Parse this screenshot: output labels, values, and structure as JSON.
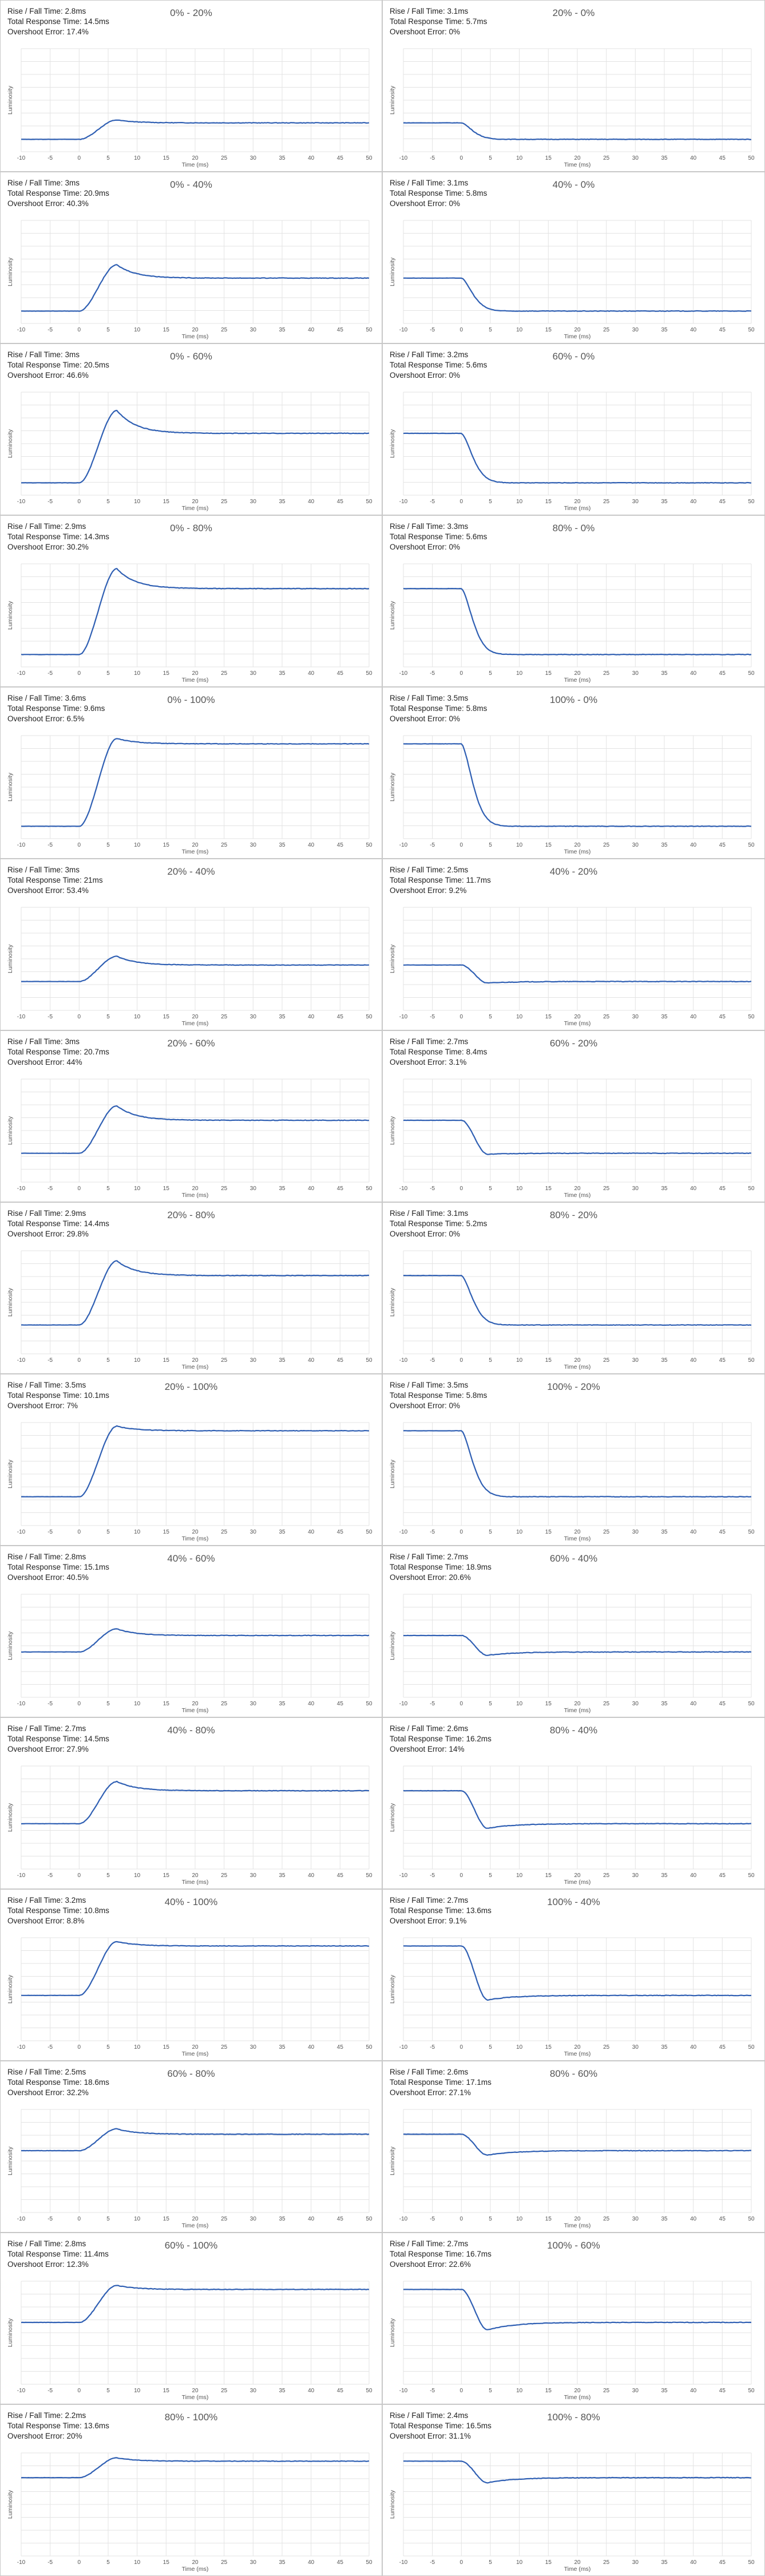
{
  "stat_labels": {
    "rise_fall": "Rise / Fall Time:",
    "total": "Total Response Time:",
    "overshoot": "Overshoot Error:"
  },
  "chart_data": [
    {
      "type": "line",
      "title": "0% - 20%",
      "kind": "rise",
      "start": 0.0,
      "target": 20,
      "overshoot": 17.4,
      "stats": {
        "rise_fall": "2.8ms",
        "total": "14.5ms",
        "overshoot": "17.4%"
      },
      "xlabel": "Time (ms)",
      "ylabel": "Luminosity",
      "xlim": [
        -10,
        50
      ],
      "ylim": [
        -15,
        110
      ],
      "xticks": [
        -10,
        -5,
        0,
        5,
        10,
        15,
        20,
        25,
        30,
        35,
        40,
        45,
        50
      ],
      "grid": true,
      "color": "#2f5fb3"
    },
    {
      "type": "line",
      "title": "20% - 0%",
      "kind": "fall",
      "start": 20,
      "target": 0,
      "overshoot": 0,
      "stats": {
        "rise_fall": "3.1ms",
        "total": "5.7ms",
        "overshoot": "0%"
      },
      "xlabel": "Time (ms)",
      "ylabel": "Luminosity",
      "xlim": [
        -10,
        50
      ],
      "ylim": [
        -15,
        110
      ],
      "xticks": [
        -10,
        -5,
        0,
        5,
        10,
        15,
        20,
        25,
        30,
        35,
        40,
        45,
        50
      ],
      "grid": true,
      "color": "#2f5fb3"
    },
    {
      "type": "line",
      "title": "0% - 40%",
      "kind": "rise",
      "start": 0,
      "target": 40,
      "overshoot": 40.3,
      "stats": {
        "rise_fall": "3ms",
        "total": "20.9ms",
        "overshoot": "40.3%"
      },
      "xlabel": "Time (ms)",
      "ylabel": "Luminosity",
      "xlim": [
        -10,
        50
      ],
      "ylim": [
        -15,
        110
      ],
      "xticks": [
        -10,
        -5,
        0,
        5,
        10,
        15,
        20,
        25,
        30,
        35,
        40,
        45,
        50
      ],
      "grid": true,
      "color": "#2f5fb3"
    },
    {
      "type": "line",
      "title": "40% - 0%",
      "kind": "fall",
      "start": 40,
      "target": 0,
      "overshoot": 0,
      "stats": {
        "rise_fall": "3.1ms",
        "total": "5.8ms",
        "overshoot": "0%"
      },
      "xlabel": "Time (ms)",
      "ylabel": "Luminosity",
      "xlim": [
        -10,
        50
      ],
      "ylim": [
        -15,
        110
      ],
      "xticks": [
        -10,
        -5,
        0,
        5,
        10,
        15,
        20,
        25,
        30,
        35,
        40,
        45,
        50
      ],
      "grid": true,
      "color": "#2f5fb3"
    },
    {
      "type": "line",
      "title": "0% - 60%",
      "kind": "rise",
      "start": 0,
      "target": 60,
      "overshoot": 46.6,
      "stats": {
        "rise_fall": "3ms",
        "total": "20.5ms",
        "overshoot": "46.6%"
      },
      "xlabel": "Time (ms)",
      "ylabel": "Luminosity",
      "xlim": [
        -10,
        50
      ],
      "ylim": [
        -15,
        110
      ],
      "xticks": [
        -10,
        -5,
        0,
        5,
        10,
        15,
        20,
        25,
        30,
        35,
        40,
        45,
        50
      ],
      "grid": true,
      "color": "#2f5fb3"
    },
    {
      "type": "line",
      "title": "60% - 0%",
      "kind": "fall",
      "start": 60,
      "target": 0,
      "overshoot": 0,
      "stats": {
        "rise_fall": "3.2ms",
        "total": "5.6ms",
        "overshoot": "0%"
      },
      "xlabel": "Time (ms)",
      "ylabel": "Luminosity",
      "xlim": [
        -10,
        50
      ],
      "ylim": [
        -15,
        110
      ],
      "xticks": [
        -10,
        -5,
        0,
        5,
        10,
        15,
        20,
        25,
        30,
        35,
        40,
        45,
        50
      ],
      "grid": true,
      "color": "#2f5fb3"
    },
    {
      "type": "line",
      "title": "0% - 80%",
      "kind": "rise",
      "start": 0,
      "target": 80,
      "overshoot": 30.2,
      "stats": {
        "rise_fall": "2.9ms",
        "total": "14.3ms",
        "overshoot": "30.2%"
      },
      "xlabel": "Time (ms)",
      "ylabel": "Luminosity",
      "xlim": [
        -10,
        50
      ],
      "ylim": [
        -15,
        110
      ],
      "xticks": [
        -10,
        -5,
        0,
        5,
        10,
        15,
        20,
        25,
        30,
        35,
        40,
        45,
        50
      ],
      "grid": true,
      "color": "#2f5fb3"
    },
    {
      "type": "line",
      "title": "80% - 0%",
      "kind": "fall",
      "start": 80,
      "target": 0,
      "overshoot": 0,
      "stats": {
        "rise_fall": "3.3ms",
        "total": "5.6ms",
        "overshoot": "0%"
      },
      "xlabel": "Time (ms)",
      "ylabel": "Luminosity",
      "xlim": [
        -10,
        50
      ],
      "ylim": [
        -15,
        110
      ],
      "xticks": [
        -10,
        -5,
        0,
        5,
        10,
        15,
        20,
        25,
        30,
        35,
        40,
        45,
        50
      ],
      "grid": true,
      "color": "#2f5fb3"
    },
    {
      "type": "line",
      "title": "0% - 100%",
      "kind": "rise",
      "start": 0,
      "target": 100,
      "overshoot": 6.5,
      "stats": {
        "rise_fall": "3.6ms",
        "total": "9.6ms",
        "overshoot": "6.5%"
      },
      "xlabel": "Time (ms)",
      "ylabel": "Luminosity",
      "xlim": [
        -10,
        50
      ],
      "ylim": [
        -15,
        110
      ],
      "xticks": [
        -10,
        -5,
        0,
        5,
        10,
        15,
        20,
        25,
        30,
        35,
        40,
        45,
        50
      ],
      "grid": true,
      "color": "#2f5fb3"
    },
    {
      "type": "line",
      "title": "100% - 0%",
      "kind": "fall",
      "start": 100,
      "target": 0,
      "overshoot": 0,
      "stats": {
        "rise_fall": "3.5ms",
        "total": "5.8ms",
        "overshoot": "0%"
      },
      "xlabel": "Time (ms)",
      "ylabel": "Luminosity",
      "xlim": [
        -10,
        50
      ],
      "ylim": [
        -15,
        110
      ],
      "xticks": [
        -10,
        -5,
        0,
        5,
        10,
        15,
        20,
        25,
        30,
        35,
        40,
        45,
        50
      ],
      "grid": true,
      "color": "#2f5fb3"
    },
    {
      "type": "line",
      "title": "20% - 40%",
      "kind": "rise",
      "start": 20,
      "target": 40,
      "overshoot": 53.4,
      "stats": {
        "rise_fall": "3ms",
        "total": "21ms",
        "overshoot": "53.4%"
      },
      "xlabel": "Time (ms)",
      "ylabel": "Luminosity",
      "xlim": [
        -10,
        50
      ],
      "ylim": [
        -15,
        110
      ],
      "xticks": [
        -10,
        -5,
        0,
        5,
        10,
        15,
        20,
        25,
        30,
        35,
        40,
        45,
        50
      ],
      "grid": true,
      "color": "#2f5fb3"
    },
    {
      "type": "line",
      "title": "40% - 20%",
      "kind": "fall",
      "start": 40,
      "target": 20,
      "overshoot": 9.2,
      "stats": {
        "rise_fall": "2.5ms",
        "total": "11.7ms",
        "overshoot": "9.2%"
      },
      "xlabel": "Time (ms)",
      "ylabel": "Luminosity",
      "xlim": [
        -10,
        50
      ],
      "ylim": [
        -15,
        110
      ],
      "xticks": [
        -10,
        -5,
        0,
        5,
        10,
        15,
        20,
        25,
        30,
        35,
        40,
        45,
        50
      ],
      "grid": true,
      "color": "#2f5fb3"
    },
    {
      "type": "line",
      "title": "20% - 60%",
      "kind": "rise",
      "start": 20,
      "target": 60,
      "overshoot": 44,
      "stats": {
        "rise_fall": "3ms",
        "total": "20.7ms",
        "overshoot": "44%"
      },
      "xlabel": "Time (ms)",
      "ylabel": "Luminosity",
      "xlim": [
        -10,
        50
      ],
      "ylim": [
        -15,
        110
      ],
      "xticks": [
        -10,
        -5,
        0,
        5,
        10,
        15,
        20,
        25,
        30,
        35,
        40,
        45,
        50
      ],
      "grid": true,
      "color": "#2f5fb3"
    },
    {
      "type": "line",
      "title": "60% - 20%",
      "kind": "fall",
      "start": 60,
      "target": 20,
      "overshoot": 3.1,
      "stats": {
        "rise_fall": "2.7ms",
        "total": "8.4ms",
        "overshoot": "3.1%"
      },
      "xlabel": "Time (ms)",
      "ylabel": "Luminosity",
      "xlim": [
        -10,
        50
      ],
      "ylim": [
        -15,
        110
      ],
      "xticks": [
        -10,
        -5,
        0,
        5,
        10,
        15,
        20,
        25,
        30,
        35,
        40,
        45,
        50
      ],
      "grid": true,
      "color": "#2f5fb3"
    },
    {
      "type": "line",
      "title": "20% - 80%",
      "kind": "rise",
      "start": 20,
      "target": 80,
      "overshoot": 29.8,
      "stats": {
        "rise_fall": "2.9ms",
        "total": "14.4ms",
        "overshoot": "29.8%"
      },
      "xlabel": "Time (ms)",
      "ylabel": "Luminosity",
      "xlim": [
        -10,
        50
      ],
      "ylim": [
        -15,
        110
      ],
      "xticks": [
        -10,
        -5,
        0,
        5,
        10,
        15,
        20,
        25,
        30,
        35,
        40,
        45,
        50
      ],
      "grid": true,
      "color": "#2f5fb3"
    },
    {
      "type": "line",
      "title": "80% - 20%",
      "kind": "fall",
      "start": 80,
      "target": 20,
      "overshoot": 0,
      "stats": {
        "rise_fall": "3.1ms",
        "total": "5.2ms",
        "overshoot": "0%"
      },
      "xlabel": "Time (ms)",
      "ylabel": "Luminosity",
      "xlim": [
        -10,
        50
      ],
      "ylim": [
        -15,
        110
      ],
      "xticks": [
        -10,
        -5,
        0,
        5,
        10,
        15,
        20,
        25,
        30,
        35,
        40,
        45,
        50
      ],
      "grid": true,
      "color": "#2f5fb3"
    },
    {
      "type": "line",
      "title": "20% - 100%",
      "kind": "rise",
      "start": 20,
      "target": 100,
      "overshoot": 7,
      "stats": {
        "rise_fall": "3.5ms",
        "total": "10.1ms",
        "overshoot": "7%"
      },
      "xlabel": "Time (ms)",
      "ylabel": "Luminosity",
      "xlim": [
        -10,
        50
      ],
      "ylim": [
        -15,
        110
      ],
      "xticks": [
        -10,
        -5,
        0,
        5,
        10,
        15,
        20,
        25,
        30,
        35,
        40,
        45,
        50
      ],
      "grid": true,
      "color": "#2f5fb3"
    },
    {
      "type": "line",
      "title": "100% - 20%",
      "kind": "fall",
      "start": 100,
      "target": 20,
      "overshoot": 0,
      "stats": {
        "rise_fall": "3.5ms",
        "total": "5.8ms",
        "overshoot": "0%"
      },
      "xlabel": "Time (ms)",
      "ylabel": "Luminosity",
      "xlim": [
        -10,
        50
      ],
      "ylim": [
        -15,
        110
      ],
      "xticks": [
        -10,
        -5,
        0,
        5,
        10,
        15,
        20,
        25,
        30,
        35,
        40,
        45,
        50
      ],
      "grid": true,
      "color": "#2f5fb3"
    },
    {
      "type": "line",
      "title": "40% - 60%",
      "kind": "rise",
      "start": 40,
      "target": 60,
      "overshoot": 40.5,
      "stats": {
        "rise_fall": "2.8ms",
        "total": "15.1ms",
        "overshoot": "40.5%"
      },
      "xlabel": "Time (ms)",
      "ylabel": "Luminosity",
      "xlim": [
        -10,
        50
      ],
      "ylim": [
        -15,
        110
      ],
      "xticks": [
        -10,
        -5,
        0,
        5,
        10,
        15,
        20,
        25,
        30,
        35,
        40,
        45,
        50
      ],
      "grid": true,
      "color": "#2f5fb3"
    },
    {
      "type": "line",
      "title": "60% - 40%",
      "kind": "fall",
      "start": 60,
      "target": 40,
      "overshoot": 20.6,
      "stats": {
        "rise_fall": "2.7ms",
        "total": "18.9ms",
        "overshoot": "20.6%"
      },
      "xlabel": "Time (ms)",
      "ylabel": "Luminosity",
      "xlim": [
        -10,
        50
      ],
      "ylim": [
        -15,
        110
      ],
      "xticks": [
        -10,
        -5,
        0,
        5,
        10,
        15,
        20,
        25,
        30,
        35,
        40,
        45,
        50
      ],
      "grid": true,
      "color": "#2f5fb3"
    },
    {
      "type": "line",
      "title": "40% - 80%",
      "kind": "rise",
      "start": 40,
      "target": 80,
      "overshoot": 27.9,
      "stats": {
        "rise_fall": "2.7ms",
        "total": "14.5ms",
        "overshoot": "27.9%"
      },
      "xlabel": "Time (ms)",
      "ylabel": "Luminosity",
      "xlim": [
        -10,
        50
      ],
      "ylim": [
        -15,
        110
      ],
      "xticks": [
        -10,
        -5,
        0,
        5,
        10,
        15,
        20,
        25,
        30,
        35,
        40,
        45,
        50
      ],
      "grid": true,
      "color": "#2f5fb3"
    },
    {
      "type": "line",
      "title": "80% - 40%",
      "kind": "fall",
      "start": 80,
      "target": 40,
      "overshoot": 14,
      "stats": {
        "rise_fall": "2.6ms",
        "total": "16.2ms",
        "overshoot": "14%"
      },
      "xlabel": "Time (ms)",
      "ylabel": "Luminosity",
      "xlim": [
        -10,
        50
      ],
      "ylim": [
        -15,
        110
      ],
      "xticks": [
        -10,
        -5,
        0,
        5,
        10,
        15,
        20,
        25,
        30,
        35,
        40,
        45,
        50
      ],
      "grid": true,
      "color": "#2f5fb3"
    },
    {
      "type": "line",
      "title": "40% - 100%",
      "kind": "rise",
      "start": 40,
      "target": 100,
      "overshoot": 8.8,
      "stats": {
        "rise_fall": "3.2ms",
        "total": "10.8ms",
        "overshoot": "8.8%"
      },
      "xlabel": "Time (ms)",
      "ylabel": "Luminosity",
      "xlim": [
        -10,
        50
      ],
      "ylim": [
        -15,
        110
      ],
      "xticks": [
        -10,
        -5,
        0,
        5,
        10,
        15,
        20,
        25,
        30,
        35,
        40,
        45,
        50
      ],
      "grid": true,
      "color": "#2f5fb3"
    },
    {
      "type": "line",
      "title": "100% - 40%",
      "kind": "fall",
      "start": 100,
      "target": 40,
      "overshoot": 9.1,
      "stats": {
        "rise_fall": "2.7ms",
        "total": "13.6ms",
        "overshoot": "9.1%"
      },
      "xlabel": "Time (ms)",
      "ylabel": "Luminosity",
      "xlim": [
        -10,
        50
      ],
      "ylim": [
        -15,
        110
      ],
      "xticks": [
        -10,
        -5,
        0,
        5,
        10,
        15,
        20,
        25,
        30,
        35,
        40,
        45,
        50
      ],
      "grid": true,
      "color": "#2f5fb3"
    },
    {
      "type": "line",
      "title": "60% - 80%",
      "kind": "rise",
      "start": 60,
      "target": 80,
      "overshoot": 32.2,
      "stats": {
        "rise_fall": "2.5ms",
        "total": "18.6ms",
        "overshoot": "32.2%"
      },
      "xlabel": "Time (ms)",
      "ylabel": "Luminosity",
      "xlim": [
        -10,
        50
      ],
      "ylim": [
        -15,
        110
      ],
      "xticks": [
        -10,
        -5,
        0,
        5,
        10,
        15,
        20,
        25,
        30,
        35,
        40,
        45,
        50
      ],
      "grid": true,
      "color": "#2f5fb3"
    },
    {
      "type": "line",
      "title": "80% - 60%",
      "kind": "fall",
      "start": 80,
      "target": 60,
      "overshoot": 27.1,
      "stats": {
        "rise_fall": "2.6ms",
        "total": "17.1ms",
        "overshoot": "27.1%"
      },
      "xlabel": "Time (ms)",
      "ylabel": "Luminosity",
      "xlim": [
        -10,
        50
      ],
      "ylim": [
        -15,
        110
      ],
      "xticks": [
        -10,
        -5,
        0,
        5,
        10,
        15,
        20,
        25,
        30,
        35,
        40,
        45,
        50
      ],
      "grid": true,
      "color": "#2f5fb3"
    },
    {
      "type": "line",
      "title": "60% - 100%",
      "kind": "rise",
      "start": 60,
      "target": 100,
      "overshoot": 12.3,
      "stats": {
        "rise_fall": "2.8ms",
        "total": "11.4ms",
        "overshoot": "12.3%"
      },
      "xlabel": "Time (ms)",
      "ylabel": "Luminosity",
      "xlim": [
        -10,
        50
      ],
      "ylim": [
        -15,
        110
      ],
      "xticks": [
        -10,
        -5,
        0,
        5,
        10,
        15,
        20,
        25,
        30,
        35,
        40,
        45,
        50
      ],
      "grid": true,
      "color": "#2f5fb3"
    },
    {
      "type": "line",
      "title": "100% - 60%",
      "kind": "fall",
      "start": 100,
      "target": 60,
      "overshoot": 22.6,
      "stats": {
        "rise_fall": "2.7ms",
        "total": "16.7ms",
        "overshoot": "22.6%"
      },
      "xlabel": "Time (ms)",
      "ylabel": "Luminosity",
      "xlim": [
        -10,
        50
      ],
      "ylim": [
        -15,
        110
      ],
      "xticks": [
        -10,
        -5,
        0,
        5,
        10,
        15,
        20,
        25,
        30,
        35,
        40,
        45,
        50
      ],
      "grid": true,
      "color": "#2f5fb3"
    },
    {
      "type": "line",
      "title": "80% - 100%",
      "kind": "rise",
      "start": 80,
      "target": 100,
      "overshoot": 20,
      "stats": {
        "rise_fall": "2.2ms",
        "total": "13.6ms",
        "overshoot": "20%"
      },
      "xlabel": "Time (ms)",
      "ylabel": "Luminosity",
      "xlim": [
        -10,
        50
      ],
      "ylim": [
        -15,
        110
      ],
      "xticks": [
        -10,
        -5,
        0,
        5,
        10,
        15,
        20,
        25,
        30,
        35,
        40,
        45,
        50
      ],
      "grid": true,
      "color": "#2f5fb3"
    },
    {
      "type": "line",
      "title": "100% - 80%",
      "kind": "fall",
      "start": 100,
      "target": 80,
      "overshoot": 31.1,
      "stats": {
        "rise_fall": "2.4ms",
        "total": "16.5ms",
        "overshoot": "31.1%"
      },
      "xlabel": "Time (ms)",
      "ylabel": "Luminosity",
      "xlim": [
        -10,
        50
      ],
      "ylim": [
        -15,
        110
      ],
      "xticks": [
        -10,
        -5,
        0,
        5,
        10,
        15,
        20,
        25,
        30,
        35,
        40,
        45,
        50
      ],
      "grid": true,
      "color": "#2f5fb3"
    }
  ]
}
